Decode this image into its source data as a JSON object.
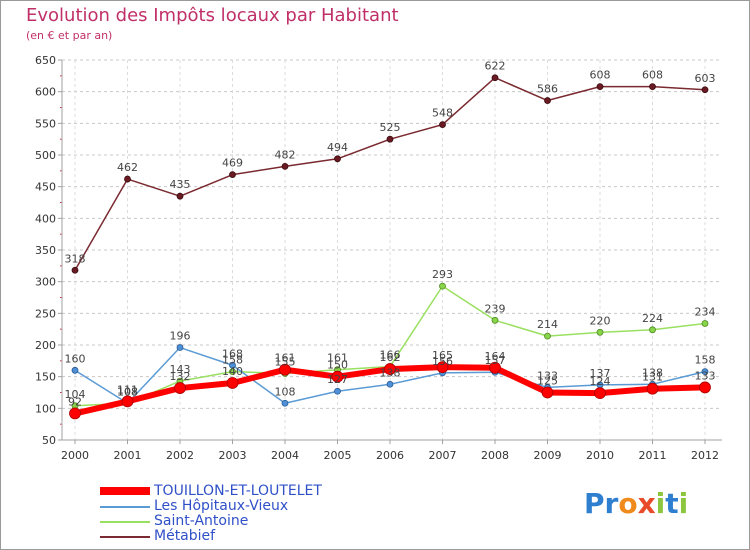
{
  "title": "Evolution des Impôts locaux par Habitant",
  "subtitle": "(en € et par an)",
  "logo": {
    "letters": [
      "P",
      "r",
      "o",
      "x",
      "i",
      "t",
      "i"
    ],
    "colors": [
      "#2f7fd0",
      "#2f7fd0",
      "#f08a1c",
      "#e84a2a",
      "#8cc63f",
      "#2f7fd0",
      "#8cc63f"
    ]
  },
  "chart_data": {
    "type": "line",
    "title": "Evolution des Impôts locaux par Habitant",
    "subtitle": "(en € et par an)",
    "xlabel": "",
    "ylabel": "",
    "x": [
      "2000",
      "2001",
      "2002",
      "2003",
      "2004",
      "2005",
      "2006",
      "2007",
      "2008",
      "2009",
      "2010",
      "2011",
      "2012"
    ],
    "ylim": [
      50,
      650
    ],
    "yticks": [
      "50",
      "100",
      "150",
      "200",
      "250",
      "300",
      "350",
      "400",
      "450",
      "500",
      "550",
      "600",
      "650"
    ],
    "grid": "horizontal dashed",
    "legend_position": "bottom-left",
    "series": [
      {
        "name": "TOUILLON-ET-LOUTELET",
        "color": "#ff0000",
        "values": [
          92,
          111,
          132,
          140,
          161,
          150,
          162,
          165,
          164,
          125,
          124,
          131,
          133
        ],
        "labels": [
          "92",
          "111",
          "132",
          "140",
          "161",
          "150",
          "162",
          "165",
          "164",
          "125",
          "124",
          "131",
          "133"
        ]
      },
      {
        "name": "Les Hôpitaux-Vieux",
        "color": "#5b9bd5",
        "values": [
          160,
          108,
          196,
          168,
          108,
          127,
          138,
          156,
          157,
          133,
          137,
          138,
          158
        ],
        "labels": [
          "160",
          "108",
          "196",
          "168",
          "108",
          "127",
          "138",
          "156",
          "157",
          "133",
          "137",
          "138",
          "158"
        ]
      },
      {
        "name": "Saint-Antoine",
        "color": "#99e060",
        "values": [
          104,
          108,
          143,
          158,
          155,
          161,
          166,
          293,
          239,
          214,
          220,
          224,
          234
        ],
        "labels": [
          "104",
          "108",
          "143",
          "158",
          "155",
          "161",
          "166",
          "293",
          "239",
          "214",
          "220",
          "224",
          "234"
        ]
      },
      {
        "name": "Métabief",
        "color": "#7a2a30",
        "values": [
          318,
          462,
          435,
          469,
          482,
          494,
          525,
          548,
          622,
          586,
          608,
          608,
          603
        ],
        "labels": [
          "318",
          "462",
          "435",
          "469",
          "482",
          "494",
          "525",
          "548",
          "622",
          "586",
          "608",
          "608",
          "603"
        ]
      }
    ]
  }
}
